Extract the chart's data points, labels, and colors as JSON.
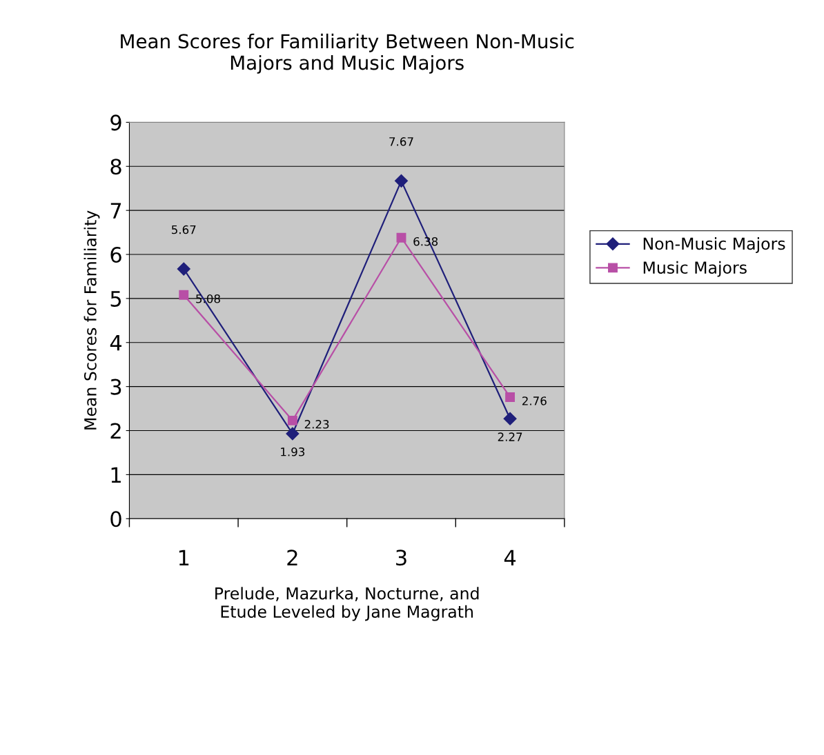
{
  "chart_data": {
    "type": "line",
    "title": "Mean Scores for Familiarity Between Non-Music\nMajors and Music Majors",
    "xlabel": "Prelude, Mazurka, Nocturne, and\nEtude Leveled by Jane Magrath",
    "ylabel": "Mean Scores for Familiarity",
    "categories": [
      "1",
      "2",
      "3",
      "4"
    ],
    "series": [
      {
        "name": "Non-Music Majors",
        "color": "#1f1f7a",
        "marker": "diamond",
        "values": [
          5.67,
          1.93,
          7.67,
          2.27
        ]
      },
      {
        "name": "Music Majors",
        "color": "#b84fa6",
        "marker": "square",
        "values": [
          5.08,
          2.23,
          6.38,
          2.76
        ]
      }
    ],
    "ylim": [
      0,
      9
    ],
    "yticks": [
      0,
      1,
      2,
      3,
      4,
      5,
      6,
      7,
      8,
      9
    ],
    "grid": "y",
    "legend": "right",
    "data_labels": true
  }
}
